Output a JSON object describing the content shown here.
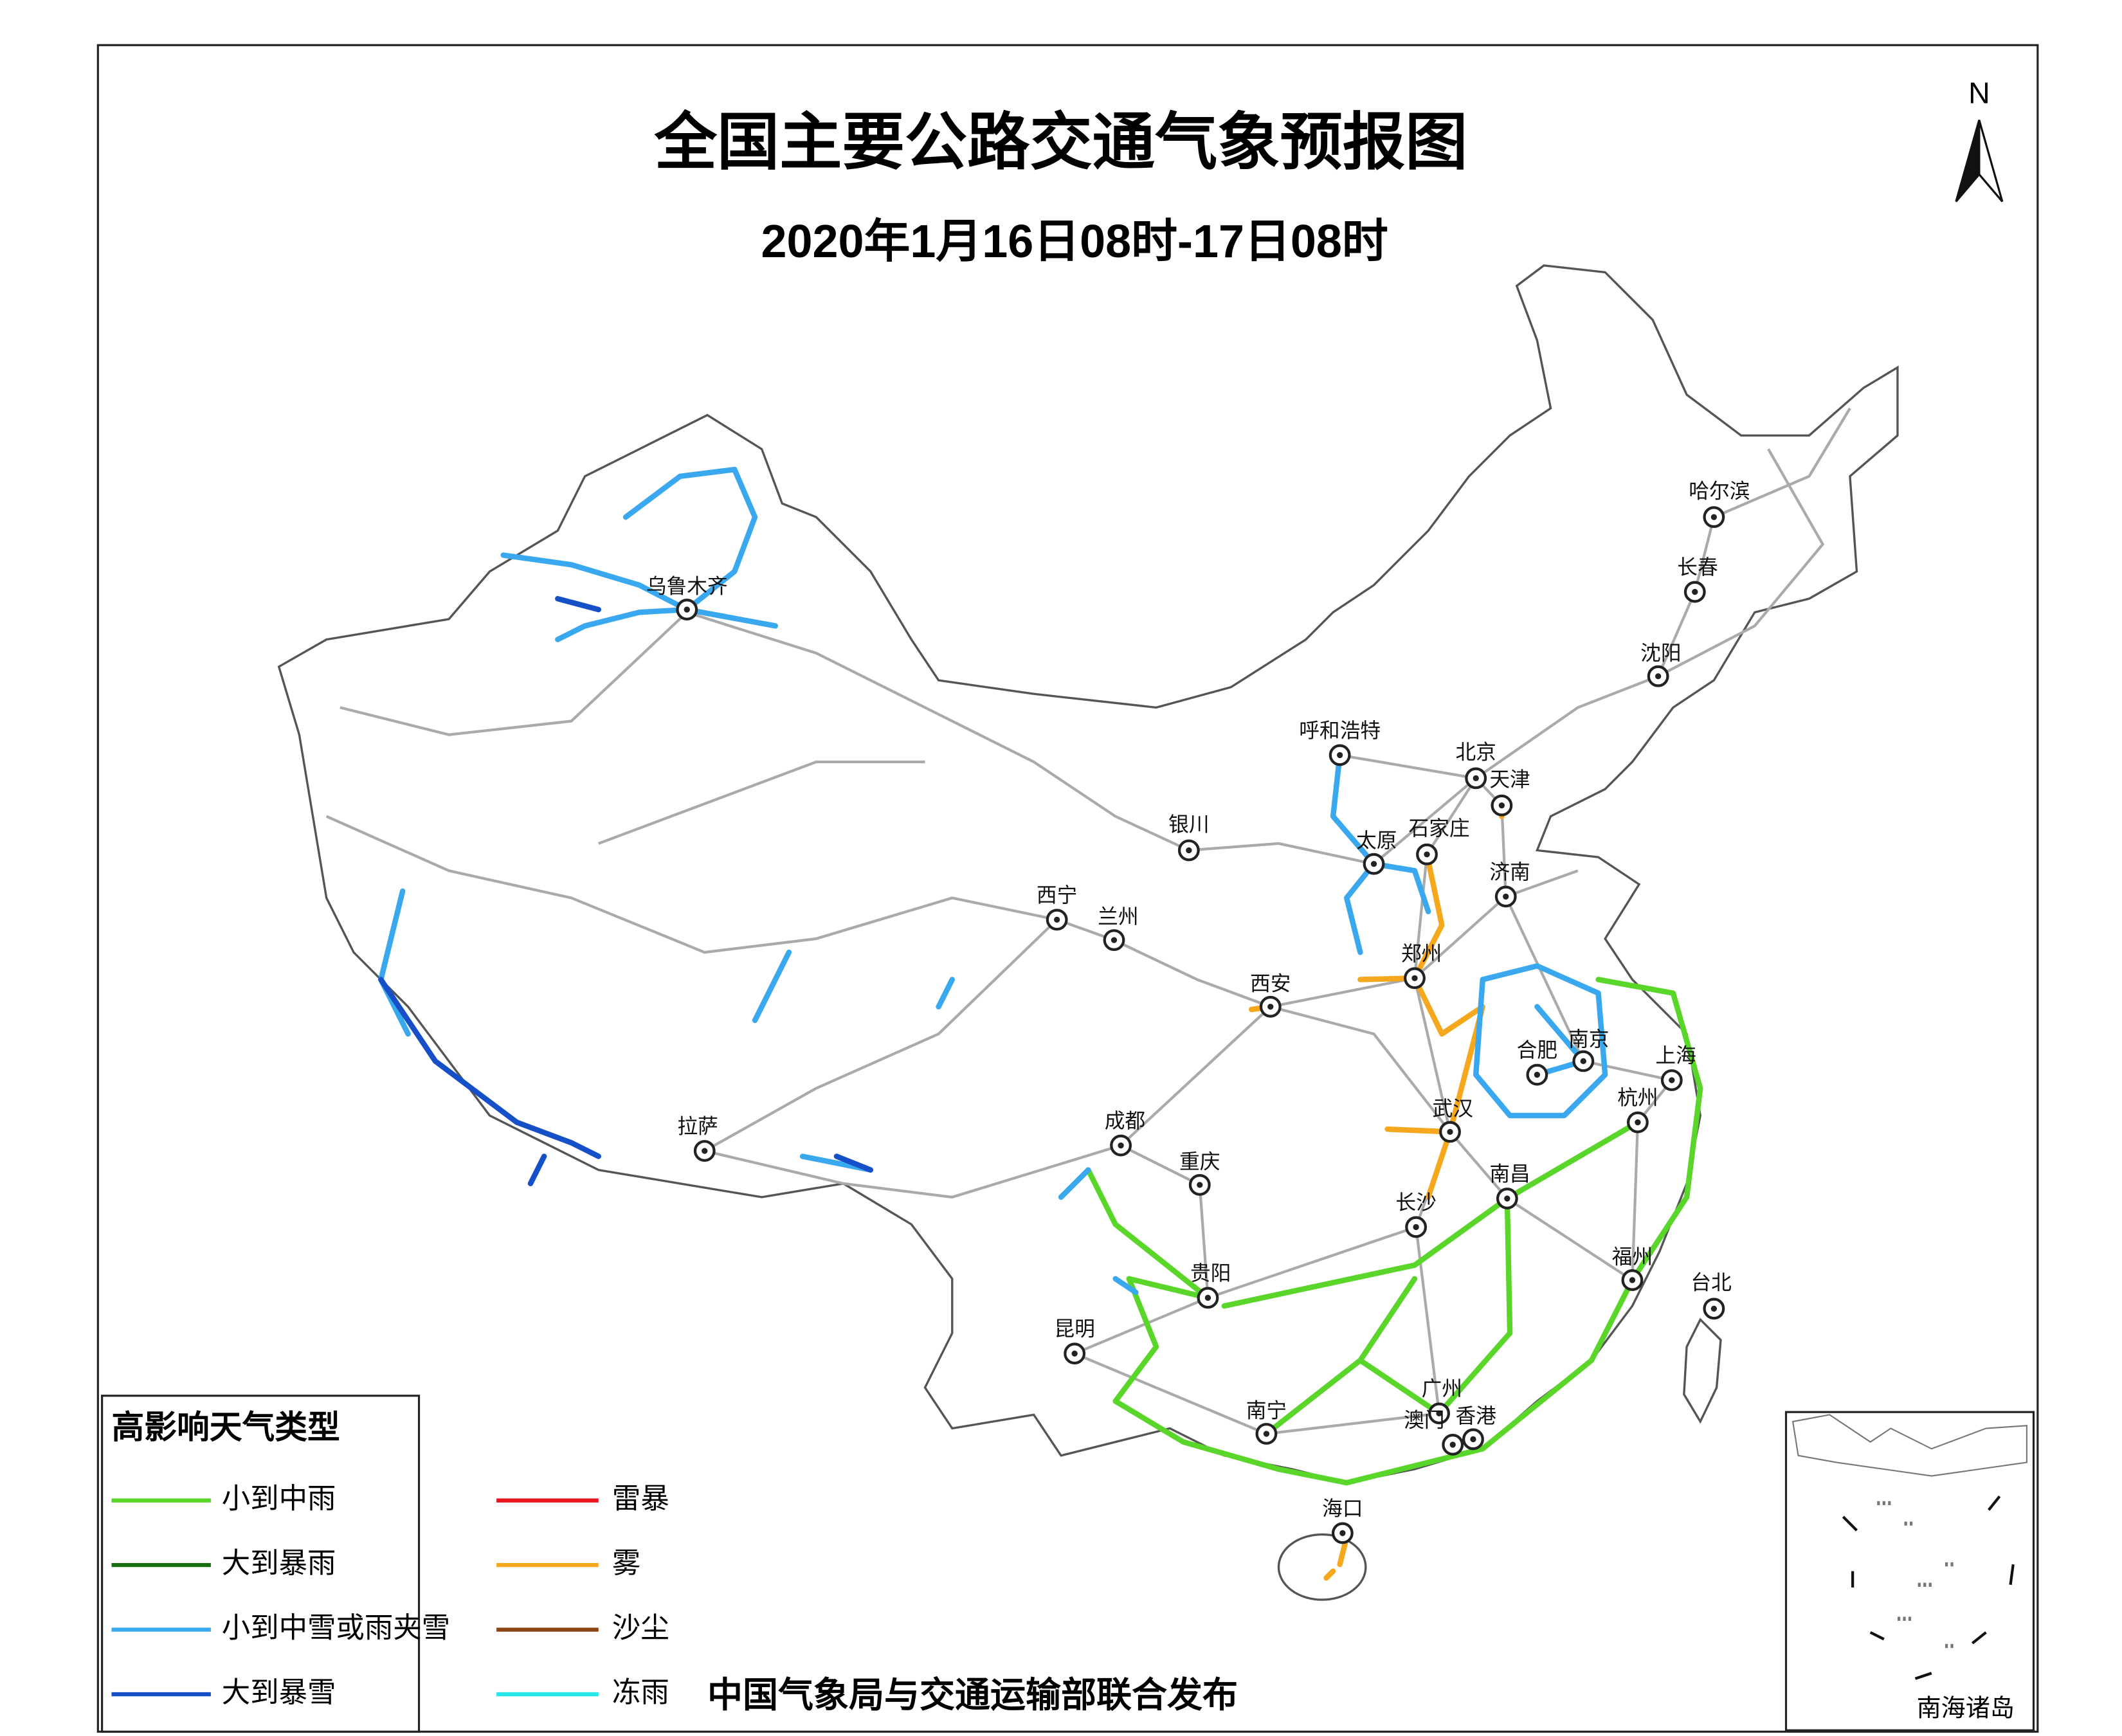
{
  "title": "全国主要公路交通气象预报图",
  "subtitle": "2020年1月16日08时-17日08时",
  "north": "N",
  "legend": {
    "title": "高影响天气类型",
    "items": [
      {
        "label": "小到中雨",
        "color": "#5ad62a"
      },
      {
        "label": "大到暴雨",
        "color": "#1a6e12"
      },
      {
        "label": "小到中雪或雨夹雪",
        "color": "#3aa8ef"
      },
      {
        "label": "大到暴雪",
        "color": "#1650c8"
      },
      {
        "label": "雷暴",
        "color": "#e8141e"
      },
      {
        "label": "雾",
        "color": "#f5a81d"
      },
      {
        "label": "沙尘",
        "color": "#8b4513"
      },
      {
        "label": "冻雨",
        "color": "#25e6e6"
      }
    ]
  },
  "cities": [
    "乌鲁木齐",
    "哈尔滨",
    "长春",
    "沈阳",
    "呼和浩特",
    "北京",
    "天津",
    "银川",
    "太原",
    "石家庄",
    "济南",
    "西宁",
    "兰州",
    "郑州",
    "西安",
    "合肥",
    "南京",
    "上海",
    "杭州",
    "拉萨",
    "成都",
    "武汉",
    "重庆",
    "南昌",
    "长沙",
    "福州",
    "台北",
    "贵阳",
    "昆明",
    "广州",
    "南宁",
    "澳门",
    "香港",
    "海口"
  ],
  "footer": "中国气象局与交通运输部联合发布",
  "inset": {
    "label": "南海诸岛"
  }
}
